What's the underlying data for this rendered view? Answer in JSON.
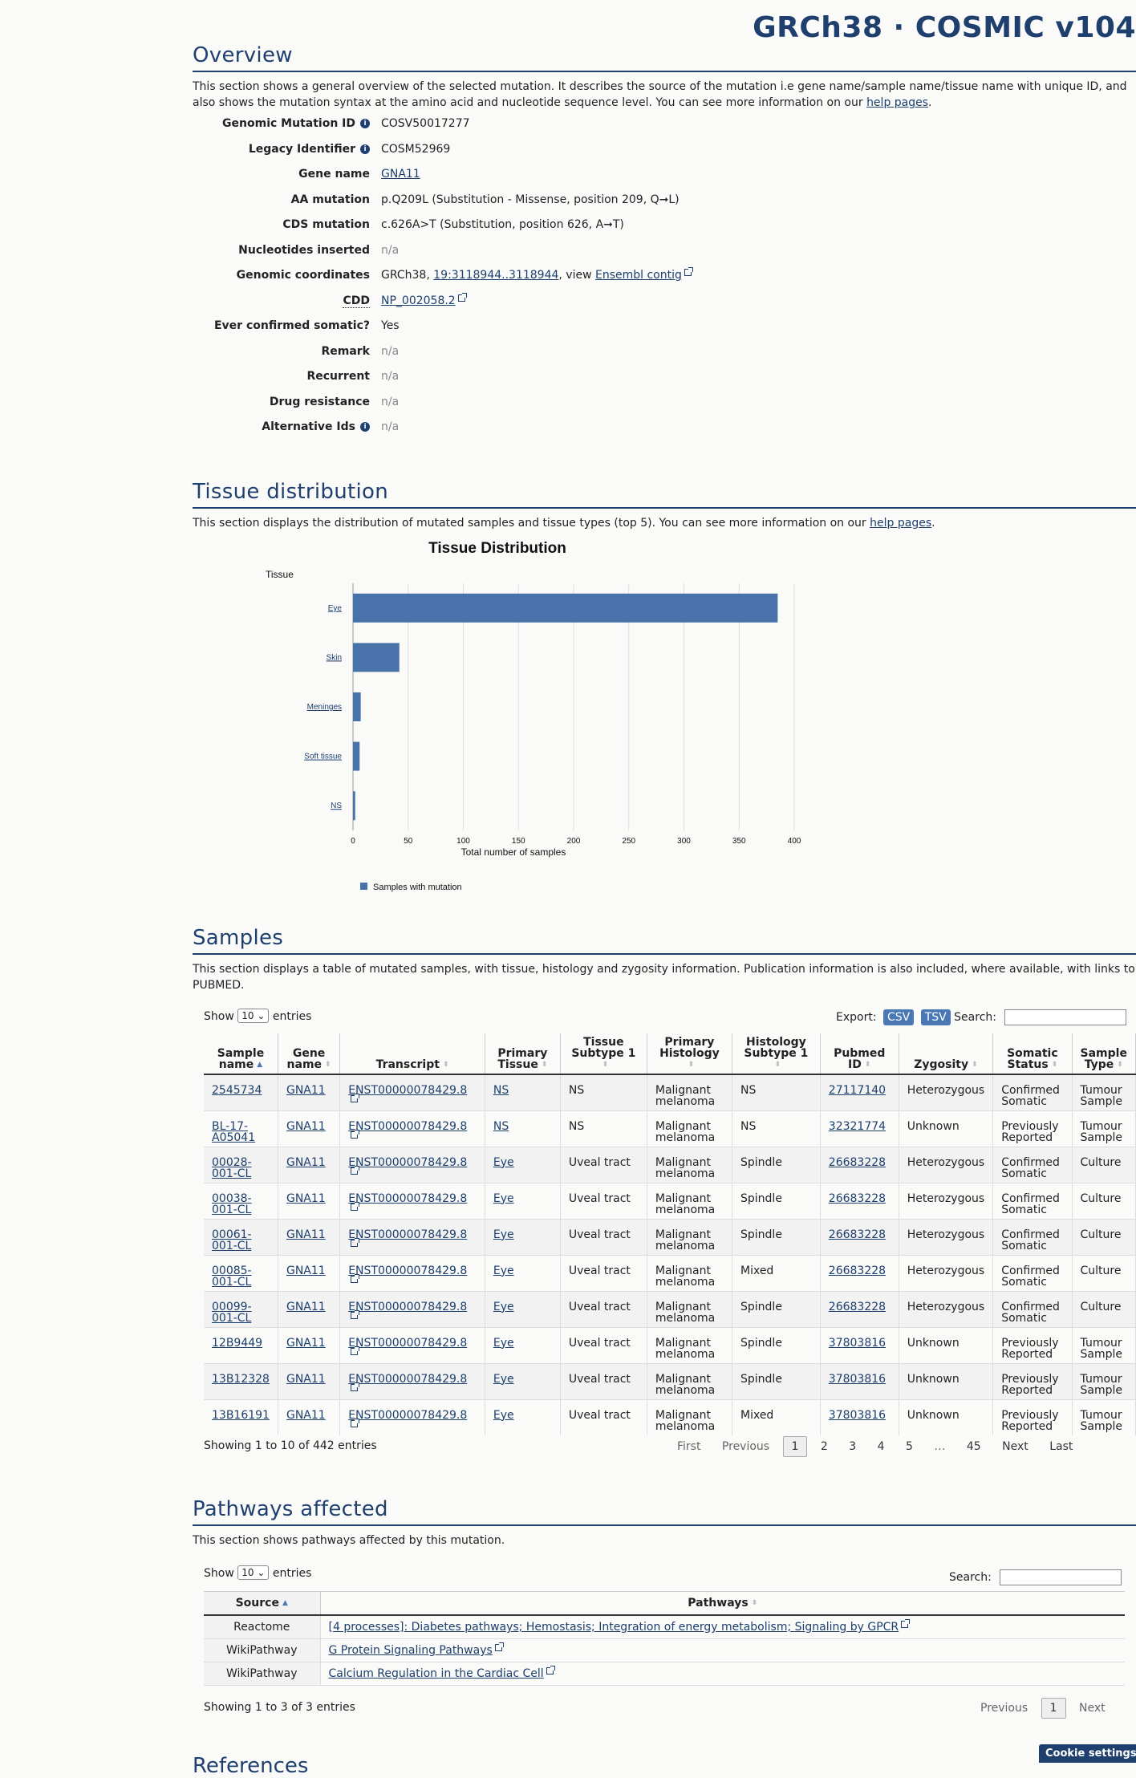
{
  "header": {
    "brand": "GRCh38 · COSMIC v104"
  },
  "overview": {
    "title": "Overview",
    "description_pre": "This section shows a general overview of the selected mutation. It describes the source of the mutation i.e gene name/sample name/tissue name with unique ID, and also shows the mutation syntax at the amino acid and nucleotide sequence level. You can see more information on our ",
    "help_link": "help pages",
    "rows": [
      {
        "key": "Genomic Mutation ID",
        "value": "COSV50017277"
      },
      {
        "key": "Legacy Identifier",
        "value": "COSM52969"
      },
      {
        "key": "Gene name",
        "value": "GNA11"
      },
      {
        "key": "AA mutation",
        "value": "p.Q209L (Substitution - Missense, position 209, Q➞L)"
      },
      {
        "key": "CDS mutation",
        "value": "c.626A>T (Substitution, position 626, A➞T)"
      },
      {
        "key": "Nucleotides inserted",
        "value": "n/a"
      },
      {
        "key": "Genomic coordinates",
        "value_prefix": "GRCh38, ",
        "coord_link": "19:3118944..3118944",
        "value_mid": ", view ",
        "ensembl_link": "Ensembl contig"
      },
      {
        "key": "CDD",
        "value": "NP_002058.2"
      },
      {
        "key": "Ever confirmed somatic?",
        "value": "Yes"
      },
      {
        "key": "Remark",
        "value": "n/a"
      },
      {
        "key": "Recurrent",
        "value": "n/a"
      },
      {
        "key": "Drug resistance",
        "value": "n/a"
      },
      {
        "key": "Alternative Ids",
        "value": "n/a"
      }
    ]
  },
  "tissue": {
    "title": "Tissue distribution",
    "description_pre": "This section displays the distribution of mutated samples and tissue types (top 5). You can see more information on our ",
    "help_link": "help pages"
  },
  "chart_data": {
    "type": "bar",
    "orientation": "horizontal",
    "title": "Tissue Distribution",
    "ylabel": "Tissue",
    "xlabel": "Total number of samples",
    "categories": [
      "Eye",
      "Skin",
      "Meninges",
      "Soft tissue",
      "NS"
    ],
    "series": [
      {
        "name": "Samples with mutation",
        "values": [
          385,
          42,
          7,
          6,
          2
        ]
      }
    ],
    "xlim": [
      0,
      400
    ],
    "xticks": [
      0,
      50,
      100,
      150,
      200,
      250,
      300,
      350,
      400
    ],
    "grid": true,
    "legend": "bottom-left",
    "color": "#4a72aa"
  },
  "samples": {
    "title": "Samples",
    "description": "This section displays a table of mutated samples, with tissue, histology and zygosity information. Publication information is also included, where available, with links to PUBMED.",
    "show_label": "Show",
    "entries_value": "10",
    "entries_label": "entries",
    "export_label": "Export:",
    "csv": "CSV",
    "tsv": "TSV",
    "search_label": "Search:",
    "columns": [
      "Sample name",
      "Gene name",
      "Transcript",
      "Primary Tissue",
      "Tissue Subtype 1",
      "Primary Histology",
      "Histology Subtype 1",
      "Pubmed ID",
      "Zygosity",
      "Somatic Status",
      "Sample Type"
    ],
    "rows": [
      [
        "2545734",
        "GNA11",
        "ENST00000078429.8",
        "NS",
        "NS",
        "Malignant melanoma",
        "NS",
        "27117140",
        "Heterozygous",
        "Confirmed Somatic",
        "Tumour Sample"
      ],
      [
        "BL-17-A05041",
        "GNA11",
        "ENST00000078429.8",
        "NS",
        "NS",
        "Malignant melanoma",
        "NS",
        "32321774",
        "Unknown",
        "Previously Reported",
        "Tumour Sample"
      ],
      [
        "00028-001-CL",
        "GNA11",
        "ENST00000078429.8",
        "Eye",
        "Uveal tract",
        "Malignant melanoma",
        "Spindle",
        "26683228",
        "Heterozygous",
        "Confirmed Somatic",
        "Culture"
      ],
      [
        "00038-001-CL",
        "GNA11",
        "ENST00000078429.8",
        "Eye",
        "Uveal tract",
        "Malignant melanoma",
        "Spindle",
        "26683228",
        "Heterozygous",
        "Confirmed Somatic",
        "Culture"
      ],
      [
        "00061-001-CL",
        "GNA11",
        "ENST00000078429.8",
        "Eye",
        "Uveal tract",
        "Malignant melanoma",
        "Spindle",
        "26683228",
        "Heterozygous",
        "Confirmed Somatic",
        "Culture"
      ],
      [
        "00085-001-CL",
        "GNA11",
        "ENST00000078429.8",
        "Eye",
        "Uveal tract",
        "Malignant melanoma",
        "Mixed",
        "26683228",
        "Heterozygous",
        "Confirmed Somatic",
        "Culture"
      ],
      [
        "00099-001-CL",
        "GNA11",
        "ENST00000078429.8",
        "Eye",
        "Uveal tract",
        "Malignant melanoma",
        "Spindle",
        "26683228",
        "Heterozygous",
        "Confirmed Somatic",
        "Culture"
      ],
      [
        "12B9449",
        "GNA11",
        "ENST00000078429.8",
        "Eye",
        "Uveal tract",
        "Malignant melanoma",
        "Spindle",
        "37803816",
        "Unknown",
        "Previously Reported",
        "Tumour Sample"
      ],
      [
        "13B12328",
        "GNA11",
        "ENST00000078429.8",
        "Eye",
        "Uveal tract",
        "Malignant melanoma",
        "Spindle",
        "37803816",
        "Unknown",
        "Previously Reported",
        "Tumour Sample"
      ],
      [
        "13B16191",
        "GNA11",
        "ENST00000078429.8",
        "Eye",
        "Uveal tract",
        "Malignant melanoma",
        "Mixed",
        "37803816",
        "Unknown",
        "Previously Reported",
        "Tumour Sample"
      ]
    ],
    "info": "Showing 1 to 10 of 442 entries",
    "pager": {
      "first": "First",
      "previous": "Previous",
      "pages": [
        "1",
        "2",
        "3",
        "4",
        "5",
        "…",
        "45"
      ],
      "next": "Next",
      "last": "Last"
    }
  },
  "pathways": {
    "title": "Pathways affected",
    "description": "This section shows pathways affected by this mutation.",
    "show_label": "Show",
    "entries_value": "10",
    "entries_label": "entries",
    "search_label": "Search:",
    "columns": [
      "Source",
      "Pathways"
    ],
    "rows": [
      {
        "source": "Reactome",
        "pathway": "[4 processes]: Diabetes pathways; Hemostasis; Integration of energy metabolism; Signaling by GPCR"
      },
      {
        "source": "WikiPathway",
        "pathway": "G Protein Signaling Pathways"
      },
      {
        "source": "WikiPathway",
        "pathway": "Calcium Regulation in the Cardiac Cell"
      }
    ],
    "info": "Showing 1 to 3 of 3 entries",
    "pager": {
      "previous": "Previous",
      "page": "1",
      "next": "Next"
    }
  },
  "references": {
    "title": "References"
  },
  "cookie": {
    "label": "Cookie settings"
  }
}
